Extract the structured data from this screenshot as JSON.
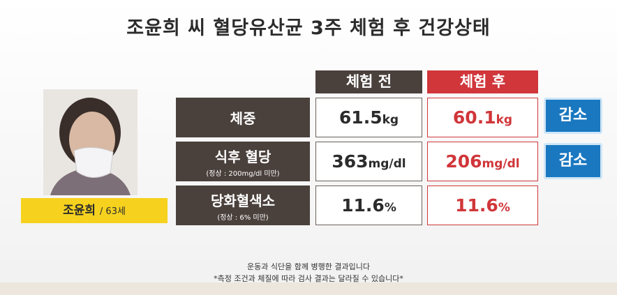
{
  "title": "조윤희 씨 혈당유산균 3주 체험 후 건강상태",
  "person": {
    "name": "조윤희",
    "age": "/ 63세"
  },
  "table": {
    "headers": [
      "체험 전",
      "체험 후"
    ],
    "rows": [
      {
        "label": "체중",
        "before": {
          "value": "61.5",
          "unit": "kg"
        },
        "after": {
          "value": "60.1",
          "unit": "kg"
        },
        "badge": "감소"
      },
      {
        "label": "식후 혈당",
        "note": "(정상 : 200mg/dl 미만)",
        "before": {
          "value": "363",
          "unit": "mg/dl"
        },
        "after": {
          "value": "206",
          "unit": "mg/dl"
        },
        "badge": "감소"
      },
      {
        "label": "당화혈색소",
        "note": "(정상 : 6% 미만)",
        "before": {
          "value": "11.6",
          "unit": "%"
        },
        "after": {
          "value": "11.6",
          "unit": "%"
        }
      }
    ]
  },
  "footer": [
    "운동과 식단을 함께 병행한 결과입니다",
    "*측정 조건과 체질에 따라 검사 결과는 달라질 수 있습니다*"
  ]
}
